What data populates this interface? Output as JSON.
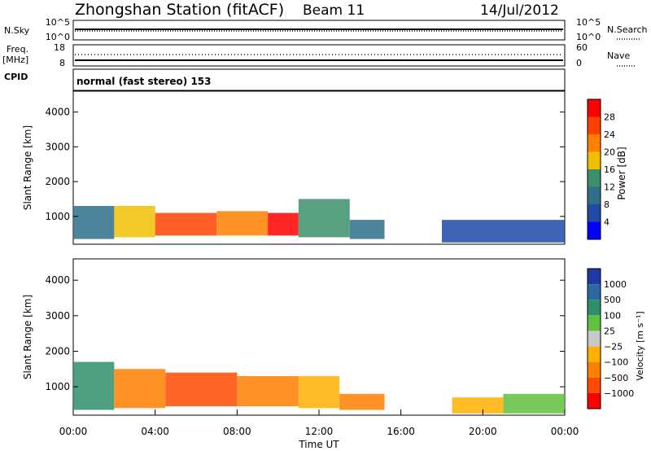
{
  "header": {
    "station": "Zhongshan Station (fitACF)",
    "beam": "Beam 11",
    "date": "14/Jul/2012"
  },
  "strip_labels": {
    "nsky": "N.Sky",
    "nsky_top": "10^5",
    "nsky_bottom": "10^0",
    "nsearch_top": "10^5",
    "nsearch_bottom": "10^0",
    "nsearch": "N.Search",
    "freq_line1": "Freq.",
    "freq_line2": "[MHz]",
    "freq_top": "18",
    "freq_bottom": "8",
    "nave_top": "60",
    "nave_bottom": "0",
    "nave": "Nave",
    "cpid": "CPID",
    "cpid_text": "normal (fast stereo) 153"
  },
  "colors": {
    "power": [
      "#0000ff",
      "#1f4aa8",
      "#2f6f8a",
      "#3b8f6a",
      "#f0c000",
      "#ff7f00",
      "#ff4000",
      "#ff0000"
    ],
    "velocity": [
      "#ff0000",
      "#ff4a00",
      "#ff7f00",
      "#ffb000",
      "#c8c8c8",
      "#60c040",
      "#2f8f6a",
      "#2a6aa0",
      "#1f3aa8"
    ]
  },
  "chart_data": [
    {
      "type": "heatmap",
      "panel": "power",
      "xlabel": "",
      "ylabel": "Slant Range [km]",
      "ylim": [
        200,
        4600
      ],
      "xlim": [
        0,
        24
      ],
      "yticks": [
        "1000",
        "2000",
        "3000",
        "4000"
      ],
      "colorbar": {
        "label": "Power [dB]",
        "ticks": [
          "4",
          "8",
          "12",
          "16",
          "20",
          "24",
          "28"
        ],
        "range": [
          0,
          32
        ]
      },
      "regions": [
        {
          "x0": 0.0,
          "x1": 2.0,
          "y0": 350,
          "y1": 1300,
          "level": 2
        },
        {
          "x0": 2.0,
          "x1": 4.0,
          "y0": 400,
          "y1": 1300,
          "level": 4
        },
        {
          "x0": 4.0,
          "x1": 7.0,
          "y0": 450,
          "y1": 1100,
          "level": 6
        },
        {
          "x0": 7.0,
          "x1": 9.5,
          "y0": 450,
          "y1": 1150,
          "level": 5
        },
        {
          "x0": 9.5,
          "x1": 11.0,
          "y0": 450,
          "y1": 1100,
          "level": 7
        },
        {
          "x0": 11.0,
          "x1": 13.5,
          "y0": 400,
          "y1": 1500,
          "level": 3
        },
        {
          "x0": 13.5,
          "x1": 15.2,
          "y0": 350,
          "y1": 900,
          "level": 2
        },
        {
          "x0": 18.0,
          "x1": 24.0,
          "y0": 250,
          "y1": 900,
          "level": 1
        }
      ]
    },
    {
      "type": "heatmap",
      "panel": "velocity",
      "xlabel": "Time UT",
      "ylabel": "Slant Range [km]",
      "ylim": [
        200,
        4600
      ],
      "xlim": [
        0,
        24
      ],
      "xticks": [
        "00:00",
        "04:00",
        "08:00",
        "12:00",
        "16:00",
        "20:00",
        "00:00"
      ],
      "yticks": [
        "1000",
        "2000",
        "3000",
        "4000"
      ],
      "colorbar": {
        "label": "Velocity [m s⁻¹]",
        "ticks": [
          "1000",
          "500",
          "100",
          "25",
          "−25",
          "−100",
          "−500",
          "−1000"
        ]
      },
      "regions": [
        {
          "x0": 0.0,
          "x1": 2.0,
          "y0": 350,
          "y1": 1700,
          "level": 6
        },
        {
          "x0": 2.0,
          "x1": 4.5,
          "y0": 400,
          "y1": 1500,
          "level": 2
        },
        {
          "x0": 4.5,
          "x1": 8.0,
          "y0": 450,
          "y1": 1400,
          "level": 1
        },
        {
          "x0": 8.0,
          "x1": 11.0,
          "y0": 450,
          "y1": 1300,
          "level": 2
        },
        {
          "x0": 11.0,
          "x1": 13.0,
          "y0": 400,
          "y1": 1300,
          "level": 3
        },
        {
          "x0": 13.0,
          "x1": 15.2,
          "y0": 350,
          "y1": 800,
          "level": 2
        },
        {
          "x0": 18.5,
          "x1": 21.0,
          "y0": 250,
          "y1": 700,
          "level": 3
        },
        {
          "x0": 21.0,
          "x1": 24.0,
          "y0": 250,
          "y1": 800,
          "level": 5
        }
      ]
    }
  ]
}
